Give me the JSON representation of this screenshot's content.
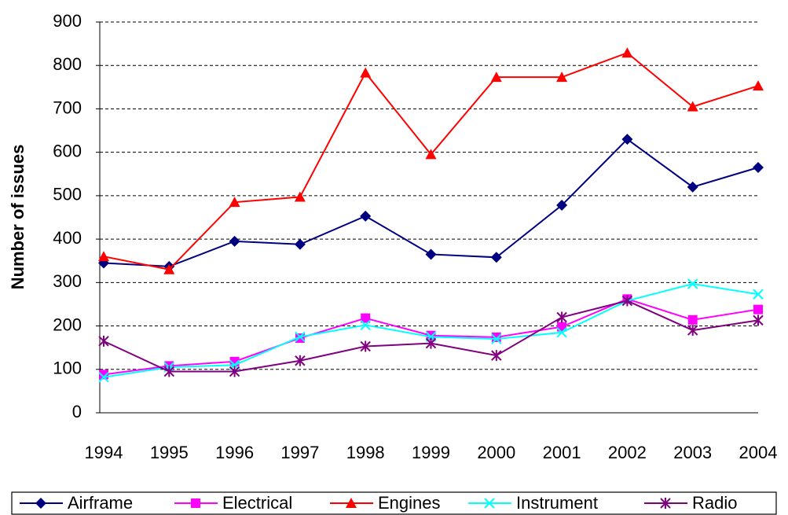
{
  "chart_data": {
    "type": "line",
    "y_label": "Number of issues",
    "categories": [
      "1994",
      "1995",
      "1996",
      "1997",
      "1998",
      "1999",
      "2000",
      "2001",
      "2002",
      "2003",
      "2004"
    ],
    "series": [
      {
        "name": "Airframe",
        "color": "#000080",
        "marker": "diamond",
        "values": [
          345,
          337,
          395,
          388,
          453,
          365,
          358,
          478,
          630,
          520,
          565
        ]
      },
      {
        "name": "Electrical",
        "color": "#ff00ff",
        "marker": "square",
        "values": [
          88,
          108,
          118,
          172,
          218,
          178,
          174,
          198,
          262,
          214,
          238
        ]
      },
      {
        "name": "Engines",
        "color": "#ff0000",
        "marker": "triangle",
        "values": [
          360,
          330,
          485,
          497,
          783,
          595,
          773,
          773,
          829,
          705,
          753
        ]
      },
      {
        "name": "Instrument",
        "color": "#00ffff",
        "marker": "x",
        "values": [
          82,
          105,
          110,
          175,
          202,
          175,
          170,
          185,
          258,
          297,
          273
        ]
      },
      {
        "name": "Radio",
        "color": "#800080",
        "marker": "star",
        "values": [
          165,
          95,
          95,
          120,
          153,
          160,
          132,
          220,
          258,
          190,
          213
        ]
      }
    ],
    "ylim": [
      0,
      900
    ],
    "yticks": [
      0,
      100,
      200,
      300,
      400,
      500,
      600,
      700,
      800,
      900
    ],
    "grid": true,
    "legend": "bottom"
  }
}
